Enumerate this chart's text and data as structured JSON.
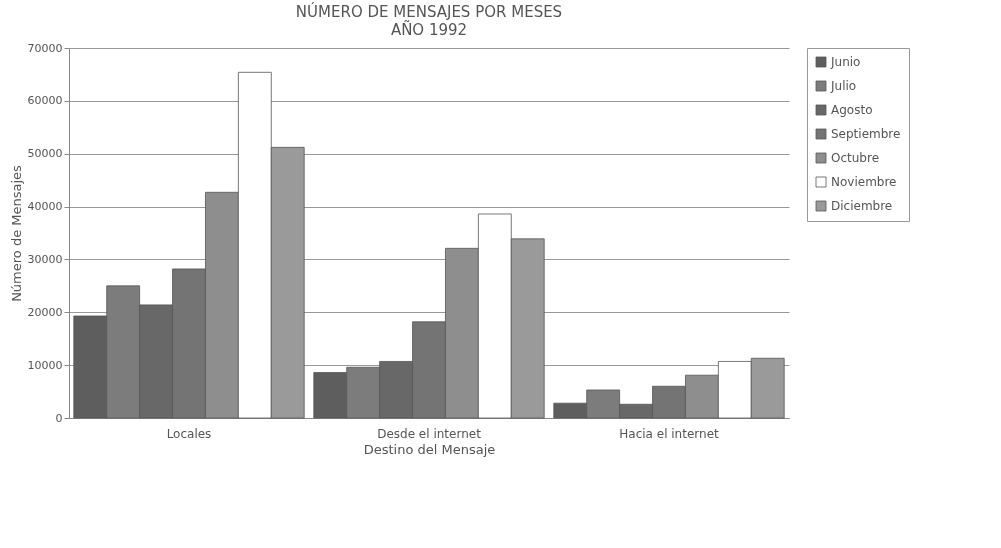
{
  "chart_data": {
    "type": "bar",
    "title": "NÚMERO DE MENSAJES POR MESES",
    "subtitle": "AÑO 1992",
    "xlabel": "Destino del Mensaje",
    "ylabel": "Número de Mensajes",
    "categories": [
      "Locales",
      "Desde el internet",
      "Hacia el internet"
    ],
    "series": [
      {
        "name": "Junio",
        "color": "#5e5e5e",
        "values": [
          19300,
          8600,
          2800
        ]
      },
      {
        "name": "Julio",
        "color": "#7c7c7c",
        "values": [
          25000,
          9600,
          5300
        ]
      },
      {
        "name": "Agosto",
        "color": "#686868",
        "values": [
          21400,
          10700,
          2600
        ]
      },
      {
        "name": "Septiembre",
        "color": "#747474",
        "values": [
          28200,
          18200,
          6000
        ]
      },
      {
        "name": "Octubre",
        "color": "#8e8e8e",
        "values": [
          42700,
          32100,
          8100
        ]
      },
      {
        "name": "Noviembre",
        "color": "#ffffff",
        "values": [
          65400,
          38600,
          10700
        ]
      },
      {
        "name": "Diciembre",
        "color": "#9a9a9a",
        "values": [
          51200,
          33900,
          11300
        ]
      }
    ],
    "ylim": [
      0,
      70000
    ],
    "yticks": [
      0,
      10000,
      20000,
      30000,
      40000,
      50000,
      60000,
      70000
    ],
    "grid": "y",
    "legend": "top right"
  }
}
